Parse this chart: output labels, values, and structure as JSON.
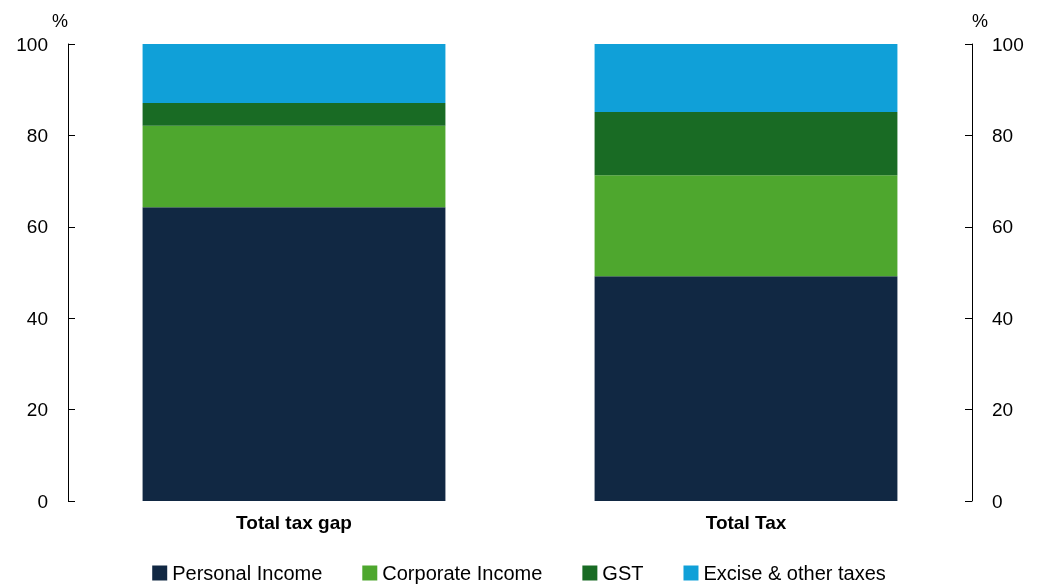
{
  "chart_data": {
    "type": "bar",
    "stacked": true,
    "ylabel": "%",
    "y2label": "%",
    "categories": [
      "Total tax gap",
      "Total Tax"
    ],
    "series": [
      {
        "name": "Personal Income",
        "color": "#112843",
        "values": [
          64.3,
          49.2
        ]
      },
      {
        "name": "Corporate Income",
        "color": "#4ea72e",
        "values": [
          17.8,
          22.1
        ]
      },
      {
        "name": "GST",
        "color": "#196b24",
        "values": [
          5.0,
          13.8
        ]
      },
      {
        "name": "Excise & other taxes",
        "color": "#10a0d8",
        "values": [
          12.9,
          14.9
        ]
      }
    ],
    "ylim": [
      0,
      100
    ],
    "yticks": [
      0,
      20,
      40,
      60,
      80,
      100
    ],
    "y2lim": [
      0,
      100
    ],
    "y2ticks": [
      0,
      20,
      40,
      60,
      80,
      100
    ],
    "grid": false,
    "legend": "bottom"
  }
}
